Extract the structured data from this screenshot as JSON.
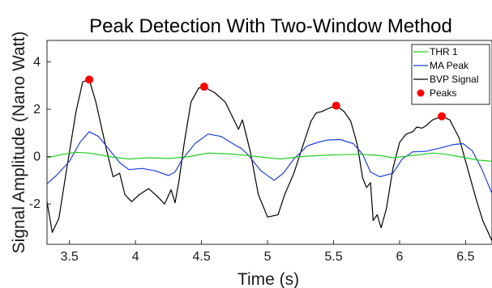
{
  "chart_data": {
    "type": "line",
    "title": "Peak Detection With Two-Window Method",
    "xlabel": "Time (s)",
    "ylabel": "Signal Amplitude (Nano Watt)",
    "xlim": [
      3.33,
      6.7
    ],
    "ylim": [
      -3.7,
      4.9
    ],
    "xticks": [
      3.5,
      4,
      4.5,
      5,
      5.5,
      6,
      6.5
    ],
    "xtick_labels": [
      "3.5",
      "4",
      "4.5",
      "5",
      "5.5",
      "6",
      "6.5"
    ],
    "yticks": [
      -2,
      0,
      2,
      4
    ],
    "ytick_labels": [
      "-2",
      "0",
      "2",
      "4"
    ],
    "grid": false,
    "legend_position": "top-right",
    "series": [
      {
        "name": "THR 1",
        "kind": "line",
        "color": "#22cc22",
        "x": [
          3.33,
          3.45,
          3.55,
          3.65,
          3.8,
          3.95,
          4.1,
          4.25,
          4.4,
          4.55,
          4.7,
          4.85,
          5.0,
          5.1,
          5.25,
          5.4,
          5.55,
          5.7,
          5.85,
          5.95,
          6.1,
          6.25,
          6.35,
          6.45,
          6.6,
          6.7
        ],
        "y": [
          -0.05,
          0.1,
          0.18,
          0.15,
          0.0,
          -0.1,
          -0.05,
          -0.08,
          0.0,
          0.15,
          0.12,
          0.05,
          -0.05,
          -0.1,
          0.0,
          0.05,
          0.08,
          0.1,
          0.05,
          -0.05,
          0.05,
          0.15,
          0.1,
          0.0,
          -0.15,
          -0.2
        ]
      },
      {
        "name": "MA Peak",
        "kind": "line",
        "color": "#1f3fd8",
        "x": [
          3.33,
          3.4,
          3.5,
          3.58,
          3.65,
          3.72,
          3.8,
          3.88,
          3.95,
          4.05,
          4.15,
          4.25,
          4.3,
          4.35,
          4.45,
          4.55,
          4.65,
          4.75,
          4.8,
          4.85,
          4.95,
          5.05,
          5.12,
          5.2,
          5.3,
          5.38,
          5.45,
          5.55,
          5.65,
          5.72,
          5.78,
          5.85,
          5.95,
          6.02,
          6.1,
          6.2,
          6.3,
          6.4,
          6.48,
          6.55,
          6.62,
          6.7
        ],
        "y": [
          -1.15,
          -0.8,
          -0.2,
          0.6,
          1.05,
          0.85,
          0.3,
          -0.25,
          -0.55,
          -0.5,
          -0.6,
          -0.8,
          -0.65,
          -0.15,
          0.55,
          0.95,
          0.85,
          0.5,
          0.35,
          0.1,
          -0.6,
          -1.0,
          -0.7,
          -0.1,
          0.45,
          0.6,
          0.7,
          0.72,
          0.55,
          0.1,
          -0.65,
          -0.85,
          -0.7,
          -0.1,
          0.2,
          0.22,
          0.35,
          0.5,
          0.55,
          0.25,
          -0.5,
          -1.55
        ]
      },
      {
        "name": "BVP Signal",
        "kind": "line",
        "color": "#000000",
        "x": [
          3.33,
          3.37,
          3.42,
          3.48,
          3.55,
          3.6,
          3.65,
          3.7,
          3.78,
          3.83,
          3.88,
          3.92,
          3.97,
          4.03,
          4.1,
          4.17,
          4.22,
          4.27,
          4.3,
          4.33,
          4.37,
          4.42,
          4.48,
          4.53,
          4.6,
          4.68,
          4.75,
          4.78,
          4.81,
          4.87,
          4.93,
          5.0,
          5.08,
          5.13,
          5.2,
          5.27,
          5.33,
          5.37,
          5.41,
          5.47,
          5.52,
          5.58,
          5.63,
          5.68,
          5.72,
          5.75,
          5.78,
          5.8,
          5.83,
          5.86,
          5.9,
          5.95,
          6.0,
          6.05,
          6.1,
          6.13,
          6.17,
          6.2,
          6.25,
          6.32,
          6.38,
          6.45,
          6.52,
          6.58,
          6.63,
          6.7
        ],
        "y": [
          -1.9,
          -3.2,
          -2.6,
          -0.5,
          1.9,
          3.15,
          3.25,
          2.3,
          0.3,
          -0.85,
          -0.7,
          -1.6,
          -1.9,
          -1.6,
          -1.35,
          -1.7,
          -2.0,
          -1.4,
          -1.95,
          -1.0,
          0.6,
          2.3,
          2.9,
          2.9,
          2.7,
          2.3,
          1.5,
          1.15,
          1.55,
          0.2,
          -1.6,
          -2.55,
          -2.45,
          -1.6,
          -0.7,
          0.5,
          1.5,
          1.85,
          1.9,
          2.05,
          2.15,
          1.9,
          1.5,
          0.5,
          -0.9,
          -1.3,
          -1.1,
          -2.7,
          -2.45,
          -3.0,
          -2.2,
          -0.5,
          0.6,
          0.95,
          1.05,
          1.25,
          1.2,
          1.3,
          1.55,
          1.7,
          1.55,
          0.8,
          -0.6,
          -1.8,
          -2.7,
          -3.55
        ]
      },
      {
        "name": "Peaks",
        "kind": "markers",
        "color": "#ff0000",
        "x": [
          3.65,
          4.52,
          5.52,
          6.32
        ],
        "y": [
          3.25,
          2.95,
          2.15,
          1.7
        ]
      }
    ]
  }
}
